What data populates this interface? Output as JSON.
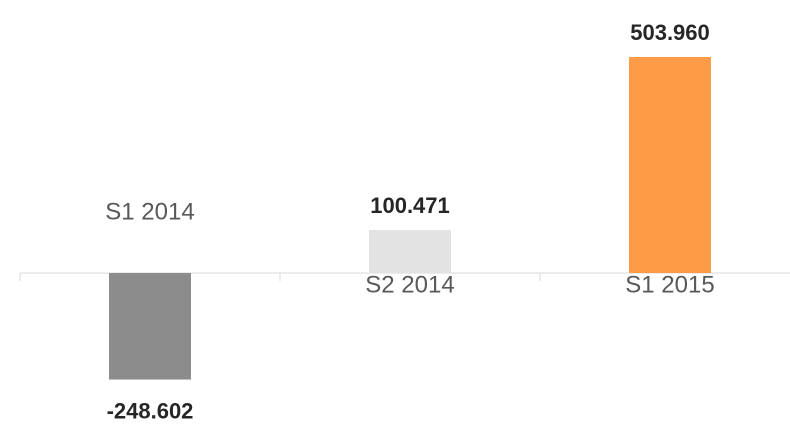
{
  "chart_data": {
    "type": "bar",
    "categories": [
      "S1 2014",
      "S2 2014",
      "S1 2015"
    ],
    "values": [
      -248602,
      100471,
      503960
    ],
    "value_labels": [
      "-248.602",
      "100.471",
      "503.960"
    ],
    "colors": [
      "#8c8c8c",
      "#e3e3e3",
      "#fd9b47"
    ]
  }
}
